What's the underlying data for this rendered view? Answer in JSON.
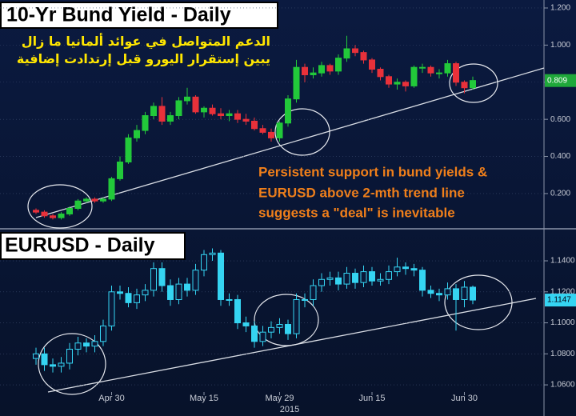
{
  "chart_data": [
    {
      "type": "candlestick",
      "title": "10-Yr Bund Yield - Daily",
      "annotations_rtl": [
        "الدعم المتواصل في عوائد ألمانيا ما زال",
        "يبين إستقرار اليورو قبل إرتدادت إضافية"
      ],
      "annotations": [
        "Persistent support in bund yields &",
        "EURUSD above 2-mth trend line",
        "suggests a \"deal\" is inevitable"
      ],
      "up_color": "#22c93a",
      "down_color": "#e8313a",
      "open": [
        0.11,
        0.1,
        0.08,
        0.07,
        0.09,
        0.12,
        0.16,
        0.17,
        0.16,
        0.17,
        0.28,
        0.37,
        0.5,
        0.54,
        0.62,
        0.67,
        0.59,
        0.62,
        0.7,
        0.72,
        0.64,
        0.66,
        0.63,
        0.62,
        0.63,
        0.6,
        0.59,
        0.55,
        0.53,
        0.5,
        0.58,
        0.71,
        0.88,
        0.84,
        0.85,
        0.89,
        0.86,
        0.93,
        0.98,
        0.96,
        0.92,
        0.87,
        0.83,
        0.79,
        0.8,
        0.78,
        0.88,
        0.88,
        0.85,
        0.85,
        0.9,
        0.8,
        0.77
      ],
      "high": [
        0.12,
        0.11,
        0.09,
        0.1,
        0.13,
        0.17,
        0.18,
        0.18,
        0.18,
        0.29,
        0.4,
        0.52,
        0.57,
        0.64,
        0.69,
        0.72,
        0.64,
        0.72,
        0.77,
        0.73,
        0.67,
        0.68,
        0.66,
        0.65,
        0.65,
        0.63,
        0.61,
        0.57,
        0.55,
        0.59,
        0.73,
        0.92,
        0.9,
        0.88,
        0.91,
        0.9,
        0.95,
        1.05,
        1.0,
        0.97,
        0.93,
        0.88,
        0.84,
        0.82,
        0.81,
        0.89,
        0.9,
        0.89,
        0.87,
        0.92,
        0.91,
        0.81,
        0.83
      ],
      "low": [
        0.09,
        0.07,
        0.06,
        0.06,
        0.08,
        0.11,
        0.15,
        0.15,
        0.15,
        0.16,
        0.27,
        0.36,
        0.48,
        0.52,
        0.6,
        0.57,
        0.57,
        0.6,
        0.68,
        0.63,
        0.61,
        0.62,
        0.6,
        0.59,
        0.58,
        0.57,
        0.54,
        0.52,
        0.48,
        0.48,
        0.56,
        0.69,
        0.8,
        0.82,
        0.83,
        0.84,
        0.84,
        0.91,
        0.94,
        0.9,
        0.85,
        0.81,
        0.77,
        0.76,
        0.75,
        0.77,
        0.85,
        0.83,
        0.82,
        0.83,
        0.78,
        0.74,
        0.76
      ],
      "close": [
        0.1,
        0.08,
        0.07,
        0.09,
        0.12,
        0.16,
        0.17,
        0.16,
        0.17,
        0.28,
        0.37,
        0.5,
        0.54,
        0.62,
        0.67,
        0.59,
        0.62,
        0.7,
        0.72,
        0.64,
        0.66,
        0.63,
        0.62,
        0.63,
        0.6,
        0.59,
        0.55,
        0.53,
        0.5,
        0.58,
        0.71,
        0.88,
        0.84,
        0.85,
        0.89,
        0.86,
        0.93,
        0.98,
        0.96,
        0.92,
        0.87,
        0.83,
        0.79,
        0.8,
        0.78,
        0.88,
        0.88,
        0.85,
        0.85,
        0.9,
        0.8,
        0.77,
        0.809
      ],
      "ylim": [
        0.023,
        1.243
      ],
      "yticks": [
        {
          "value": 0.2,
          "label": "0.200"
        },
        {
          "value": 0.4,
          "label": "0.400"
        },
        {
          "value": 0.6,
          "label": "0.600"
        },
        {
          "value": 0.8,
          "label": "0.800"
        },
        {
          "value": 1.0,
          "label": "1.000"
        },
        {
          "value": 1.2,
          "label": "1.200"
        }
      ],
      "grid": true
    },
    {
      "type": "candlestick",
      "title": "EURUSD - Daily",
      "xlabel": "2015",
      "up_color": "#35d4f2",
      "down_color": "#35d4f2",
      "categories": [
        null,
        null,
        null,
        null,
        null,
        null,
        null,
        null,
        null,
        "Apr 30",
        null,
        null,
        null,
        null,
        null,
        null,
        null,
        null,
        null,
        null,
        "May 15",
        null,
        null,
        null,
        null,
        null,
        null,
        null,
        null,
        "May 29",
        null,
        null,
        null,
        null,
        null,
        null,
        null,
        null,
        null,
        null,
        "Jun 15",
        null,
        null,
        null,
        null,
        null,
        null,
        null,
        null,
        null,
        null,
        "Jun 30",
        null
      ],
      "open": [
        1.077,
        1.08,
        1.073,
        1.072,
        1.074,
        1.083,
        1.087,
        1.085,
        1.088,
        1.098,
        1.12,
        1.119,
        1.113,
        1.118,
        1.121,
        1.135,
        1.124,
        1.115,
        1.125,
        1.121,
        1.134,
        1.144,
        1.145,
        1.115,
        1.115,
        1.1,
        1.098,
        1.088,
        1.094,
        1.097,
        1.099,
        1.093,
        1.115,
        1.115,
        1.124,
        1.128,
        1.129,
        1.125,
        1.132,
        1.126,
        1.133,
        1.127,
        1.128,
        1.133,
        1.136,
        1.135,
        1.134,
        1.121,
        1.119,
        1.118,
        1.122,
        1.115,
        1.123
      ],
      "high": [
        1.084,
        1.084,
        1.077,
        1.078,
        1.087,
        1.091,
        1.09,
        1.092,
        1.102,
        1.124,
        1.124,
        1.123,
        1.122,
        1.125,
        1.139,
        1.139,
        1.128,
        1.129,
        1.129,
        1.138,
        1.147,
        1.148,
        1.147,
        1.119,
        1.118,
        1.104,
        1.101,
        1.098,
        1.101,
        1.103,
        1.102,
        1.119,
        1.119,
        1.128,
        1.132,
        1.133,
        1.133,
        1.136,
        1.135,
        1.137,
        1.136,
        1.132,
        1.137,
        1.142,
        1.139,
        1.138,
        1.136,
        1.124,
        1.122,
        1.126,
        1.125,
        1.127,
        1.124
      ],
      "low": [
        1.073,
        1.069,
        1.068,
        1.068,
        1.07,
        1.079,
        1.081,
        1.081,
        1.085,
        1.095,
        1.115,
        1.11,
        1.109,
        1.114,
        1.117,
        1.12,
        1.111,
        1.112,
        1.117,
        1.118,
        1.13,
        1.14,
        1.111,
        1.111,
        1.096,
        1.094,
        1.084,
        1.085,
        1.09,
        1.093,
        1.089,
        1.09,
        1.11,
        1.111,
        1.12,
        1.124,
        1.121,
        1.122,
        1.122,
        1.123,
        1.124,
        1.124,
        1.125,
        1.13,
        1.131,
        1.13,
        1.117,
        1.116,
        1.114,
        1.115,
        1.095,
        1.11,
        1.112
      ],
      "close": [
        1.08,
        1.073,
        1.072,
        1.074,
        1.083,
        1.087,
        1.085,
        1.088,
        1.098,
        1.12,
        1.119,
        1.113,
        1.118,
        1.121,
        1.135,
        1.124,
        1.115,
        1.125,
        1.121,
        1.134,
        1.144,
        1.145,
        1.115,
        1.115,
        1.1,
        1.098,
        1.088,
        1.094,
        1.097,
        1.099,
        1.093,
        1.115,
        1.115,
        1.124,
        1.128,
        1.129,
        1.125,
        1.132,
        1.126,
        1.133,
        1.127,
        1.128,
        1.133,
        1.136,
        1.135,
        1.134,
        1.121,
        1.119,
        1.118,
        1.122,
        1.115,
        1.123,
        1.1147
      ],
      "ylim": [
        1.0554,
        1.1591
      ],
      "yticks": [
        {
          "value": 1.06,
          "label": "1.0600"
        },
        {
          "value": 1.08,
          "label": "1.0800"
        },
        {
          "value": 1.1,
          "label": "1.1000"
        },
        {
          "value": 1.12,
          "label": "1.1200"
        },
        {
          "value": 1.14,
          "label": "1.1400"
        }
      ],
      "grid": true
    }
  ]
}
